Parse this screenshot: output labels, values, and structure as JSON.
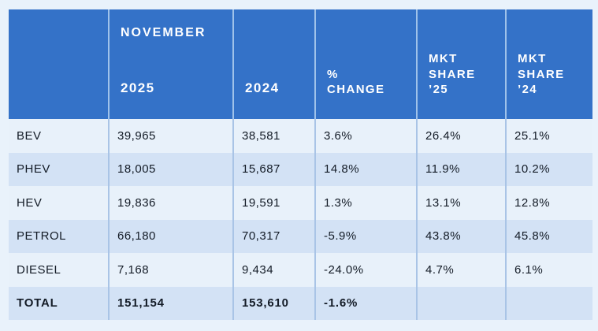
{
  "colors": {
    "page_background": "#E9F2FB",
    "header_background": "#3472C8",
    "header_text": "#FFFFFF",
    "row_light": "#E8F1FA",
    "row_dark": "#D3E2F5",
    "divider": "#A9C4E6",
    "body_text": "#131B26"
  },
  "chart_data": {
    "type": "table",
    "group_header": "NOVEMBER",
    "columns": [
      "",
      "2025",
      "2024",
      "% CHANGE",
      "MKT SHARE ’25",
      "MKT SHARE ’24"
    ],
    "rows": [
      [
        "BEV",
        "39,965",
        "38,581",
        "3.6%",
        "26.4%",
        "25.1%"
      ],
      [
        "PHEV",
        "18,005",
        "15,687",
        "14.8%",
        "11.9%",
        "10.2%"
      ],
      [
        "HEV",
        "19,836",
        "19,591",
        "1.3%",
        "13.1%",
        "12.8%"
      ],
      [
        "PETROL",
        "66,180",
        "70,317",
        "-5.9%",
        "43.8%",
        "45.8%"
      ],
      [
        "DIESEL",
        "7,168",
        "9,434",
        "-24.0%",
        "4.7%",
        "6.1%"
      ],
      [
        "TOTAL",
        "151,154",
        "153,610",
        "-1.6%",
        "",
        ""
      ]
    ]
  }
}
